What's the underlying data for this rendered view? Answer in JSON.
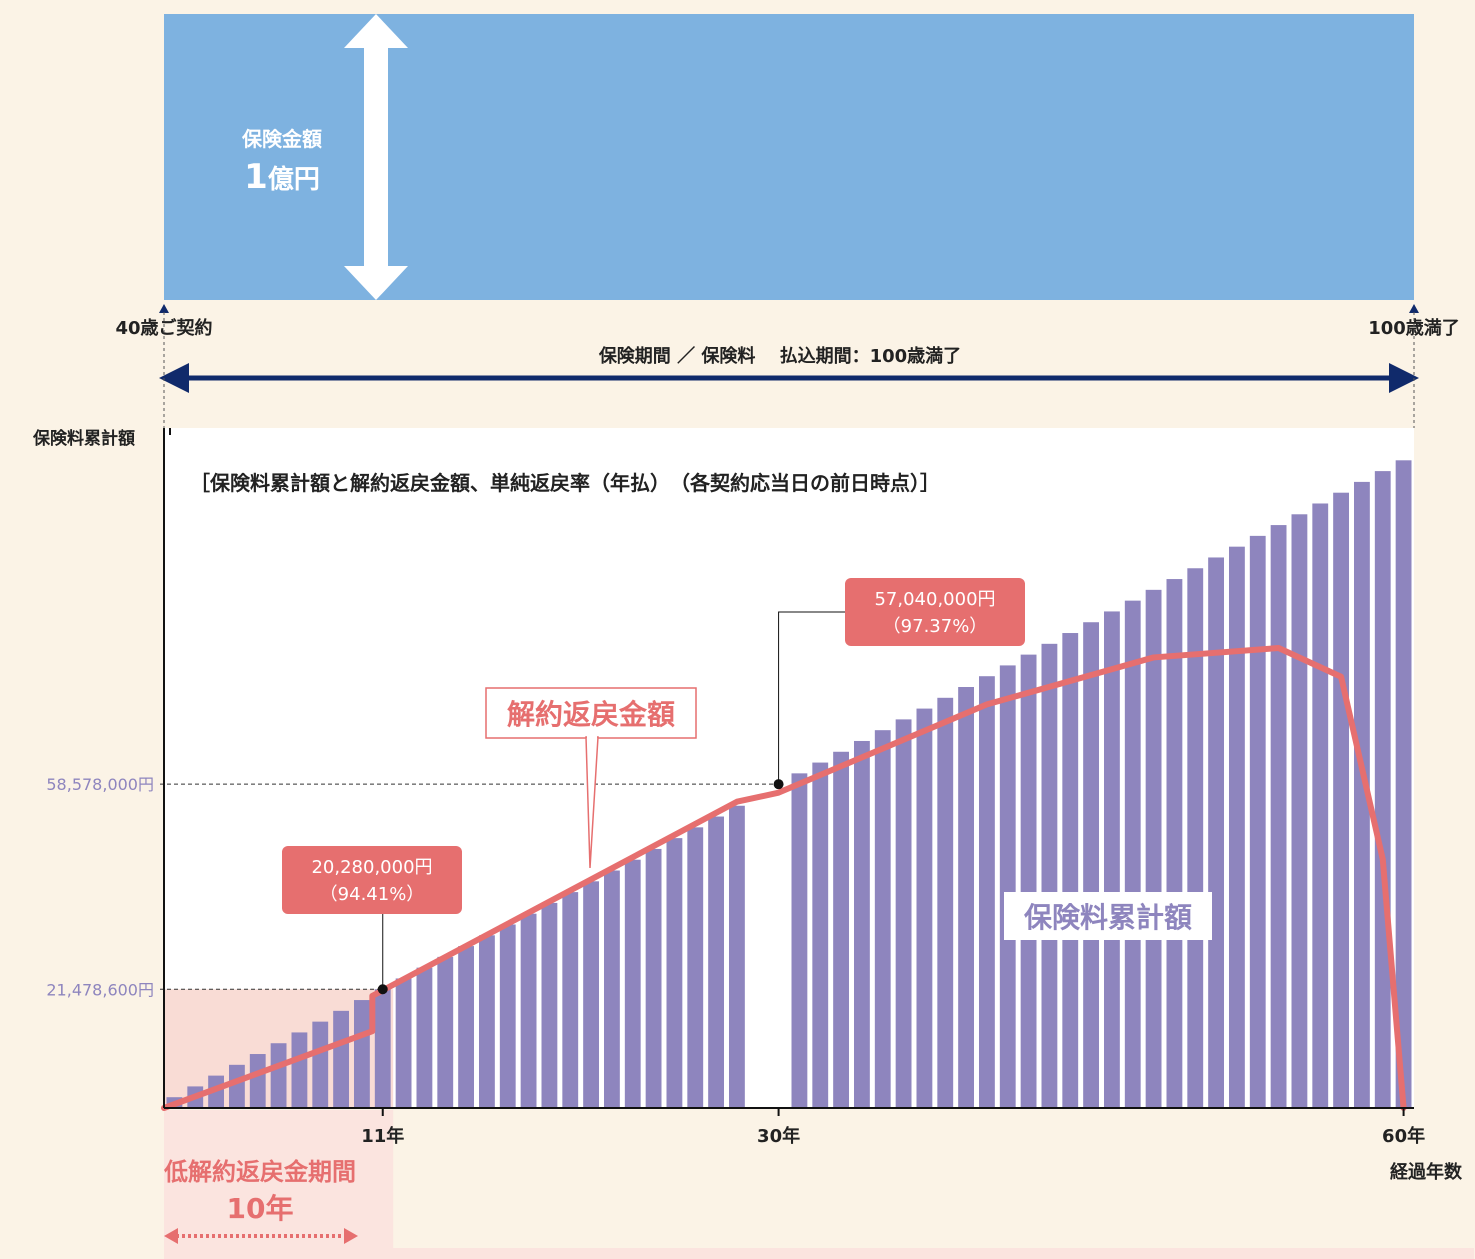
{
  "coverage": {
    "label_line1": "保険金額",
    "label_num": "1",
    "label_unit": "億円",
    "color": "#7eb2e0"
  },
  "timeline": {
    "start_label": "40歳ご契約",
    "end_label": "100歳満了",
    "period_label": "保険期間 ／ 保険料　 払込期間：100歳満了",
    "arrow_color": "#102a6b"
  },
  "chart_data": {
    "type": "bar",
    "title": "［保険料累計額と解約返戻金額、単純返戻率（年払）　（各契約応当日の前日時点）］",
    "ylabel": "保険料累計額",
    "xlabel": "経過年数",
    "x_ticks": [
      "11年",
      "30年",
      "60年"
    ],
    "y_ticks": [
      "58,578,000円",
      "21,478,600円"
    ],
    "y_tick_values": [
      58578000,
      21478600
    ],
    "ylim": [
      0,
      123000000
    ],
    "xlim": [
      0.5,
      60.5
    ],
    "bar_axis_gap_years": [
      29,
      30
    ],
    "series": [
      {
        "name": "保険料累計額",
        "type": "bar",
        "color": "#8e85be",
        "annual_premium": 1952600,
        "x_years": [
          1,
          2,
          3,
          4,
          5,
          6,
          7,
          8,
          9,
          10,
          11,
          12,
          13,
          14,
          15,
          16,
          17,
          18,
          19,
          20,
          21,
          22,
          23,
          24,
          25,
          26,
          27,
          28,
          31,
          32,
          33,
          34,
          35,
          36,
          37,
          38,
          39,
          40,
          41,
          42,
          43,
          44,
          45,
          46,
          47,
          48,
          49,
          50,
          51,
          52,
          53,
          54,
          55,
          56,
          57,
          58,
          59,
          60
        ]
      },
      {
        "name": "解約返戻金額",
        "type": "line",
        "color": "#e66f6f",
        "points": [
          [
            0.5,
            0
          ],
          [
            10.5,
            13900000
          ],
          [
            10.5,
            20280000
          ],
          [
            28,
            55400000
          ],
          [
            30,
            57040000
          ],
          [
            40,
            73000000
          ],
          [
            48,
            81500000
          ],
          [
            54,
            83200000
          ],
          [
            57,
            78000000
          ],
          [
            59,
            45000000
          ],
          [
            60,
            0
          ]
        ]
      }
    ],
    "callouts": [
      {
        "amount": "20,280,000円",
        "rate": "（94.41%）",
        "year": 11
      },
      {
        "amount": "57,040,000円",
        "rate": "（97.37%）",
        "year": 30
      }
    ],
    "low_refund_period": {
      "label": "低解約返戻金期間",
      "years": "10年",
      "color": "#e66f6f",
      "bg": "#f9dcd5"
    }
  }
}
